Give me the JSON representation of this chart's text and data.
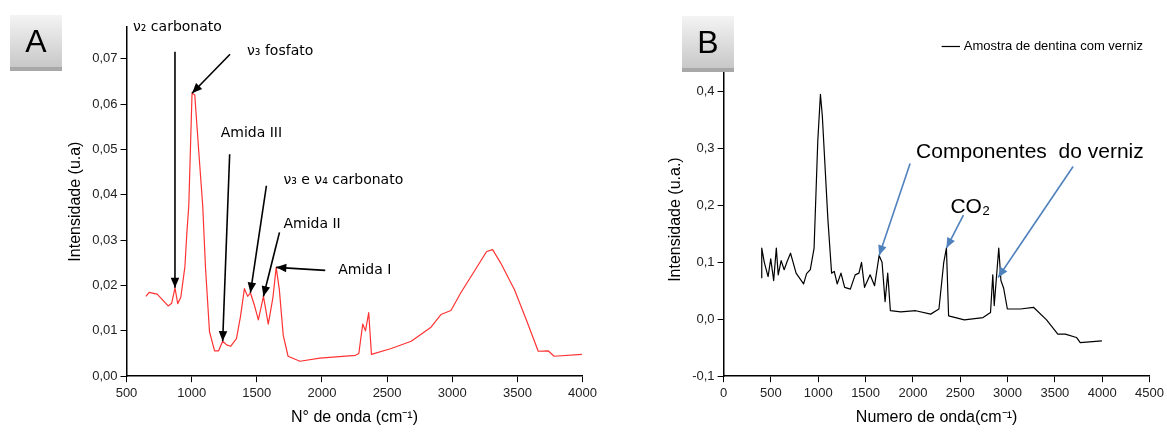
{
  "chart_data": [
    {
      "type": "line",
      "title": "A",
      "xlabel": "N° de onda (cm⁻¹)",
      "ylabel": "Intensidade (u.a)",
      "xlim": [
        500,
        4000
      ],
      "xticks": [
        500,
        1000,
        1500,
        2000,
        2500,
        3000,
        3500,
        4000
      ],
      "ylim": [
        0,
        0.077
      ],
      "yticks": [
        {
          "value": 0,
          "label": "0,00"
        },
        {
          "value": 0.01,
          "label": "0,01"
        },
        {
          "value": 0.02,
          "label": "0,02"
        },
        {
          "value": 0.03,
          "label": "0,03"
        },
        {
          "value": 0.04,
          "label": "0,04"
        },
        {
          "value": 0.05,
          "label": "0,05"
        },
        {
          "value": 0.06,
          "label": "0,06"
        },
        {
          "value": 0.07,
          "label": "0,07"
        }
      ],
      "grid": false,
      "legend": false,
      "marker": "none",
      "series": [
        {
          "color": "#ff3333",
          "x": [
            649,
            674,
            735,
            820,
            847,
            872,
            893,
            917,
            948,
            963,
            978,
            1003,
            1024,
            1055,
            1085,
            1106,
            1137,
            1176,
            1207,
            1238,
            1268,
            1299,
            1344,
            1375,
            1405,
            1430,
            1451,
            1481,
            1512,
            1551,
            1588,
            1624,
            1649,
            1673,
            1703,
            1740,
            1831,
            1984,
            2258,
            2283,
            2313,
            2334,
            2359,
            2380,
            2532,
            2685,
            2837,
            2913,
            2990,
            3066,
            3173,
            3264,
            3310,
            3371,
            3477,
            3569,
            3660,
            3736,
            3782,
            3995
          ],
          "values": [
            0.0176,
            0.0185,
            0.0181,
            0.0155,
            0.0161,
            0.0195,
            0.016,
            0.0174,
            0.0241,
            0.0315,
            0.0376,
            0.0624,
            0.062,
            0.0494,
            0.0376,
            0.0241,
            0.0098,
            0.0056,
            0.0056,
            0.0077,
            0.0069,
            0.0066,
            0.0083,
            0.0132,
            0.0193,
            0.0176,
            0.0184,
            0.0157,
            0.0124,
            0.0176,
            0.0115,
            0.0174,
            0.024,
            0.0191,
            0.009,
            0.0044,
            0.0033,
            0.004,
            0.0046,
            0.005,
            0.0115,
            0.01,
            0.014,
            0.0048,
            0.0061,
            0.0077,
            0.0108,
            0.0136,
            0.0145,
            0.0184,
            0.0233,
            0.0275,
            0.0279,
            0.025,
            0.0191,
            0.0124,
            0.0055,
            0.0056,
            0.0044,
            0.0048
          ]
        }
      ],
      "annotations": [
        {
          "text": "ν₂ carbonato",
          "x": 872,
          "y": 0.0195
        },
        {
          "text": "ν₃ fosfato",
          "x": 1003,
          "y": 0.0624
        },
        {
          "text": "Amida III",
          "x": 1238,
          "y": 0.0077
        },
        {
          "text": "ν₃ e ν₄ carbonato",
          "x": 1451,
          "y": 0.0184
        },
        {
          "text": "Amida II",
          "x": 1551,
          "y": 0.0176
        },
        {
          "text": "Amida I",
          "x": 1649,
          "y": 0.024
        }
      ]
    },
    {
      "type": "line",
      "title": "B",
      "xlabel": "Numero de onda(cm⁻¹)",
      "ylabel": "Intensidade (u.a.)",
      "xlim": [
        0,
        4500
      ],
      "xticks": [
        0,
        500,
        1000,
        1500,
        2000,
        2500,
        3000,
        3500,
        4000,
        4500
      ],
      "ylim": [
        -0.1,
        0.45
      ],
      "yticks": [
        {
          "value": -0.1,
          "label": "-0,1"
        },
        {
          "value": 0,
          "label": "0,0"
        },
        {
          "value": 0.1,
          "label": "0,1"
        },
        {
          "value": 0.2,
          "label": "0,2"
        },
        {
          "value": 0.3,
          "label": "0,3"
        },
        {
          "value": 0.4,
          "label": "0,4"
        }
      ],
      "grid": false,
      "legend": "top right",
      "marker": "none",
      "series": [
        {
          "name": "Amostra de dentina com verniz",
          "color": "#000000",
          "x": [
            403,
            403,
            430,
            470,
            498,
            529,
            557,
            577,
            608,
            640,
            668,
            707,
            766,
            845,
            877,
            916,
            956,
            995,
            1023,
            1043,
            1102,
            1141,
            1169,
            1200,
            1240,
            1279,
            1339,
            1390,
            1430,
            1457,
            1489,
            1548,
            1595,
            1643,
            1674,
            1706,
            1734,
            1762,
            1872,
            2030,
            2188,
            2275,
            2326,
            2354,
            2377,
            2543,
            2741,
            2820,
            2844,
            2859,
            2907,
            2930,
            2958,
            2998,
            3136,
            3274,
            3412,
            3531,
            3610,
            3728,
            3768,
            3997
          ],
          "values": [
            0.072,
            0.125,
            0.1,
            0.075,
            0.106,
            0.068,
            0.125,
            0.078,
            0.103,
            0.087,
            0.1,
            0.116,
            0.081,
            0.062,
            0.08,
            0.087,
            0.125,
            0.313,
            0.395,
            0.357,
            0.175,
            0.081,
            0.084,
            0.062,
            0.081,
            0.056,
            0.053,
            0.078,
            0.081,
            0.1,
            0.056,
            0.078,
            0.059,
            0.112,
            0.1,
            0.031,
            0.081,
            0.015,
            0.013,
            0.015,
            0.009,
            0.018,
            0.1,
            0.125,
            0.006,
            -0.001,
            0.003,
            0.012,
            0.078,
            0.024,
            0.125,
            0.068,
            0.055,
            0.018,
            0.018,
            0.021,
            -0.001,
            -0.026,
            -0.026,
            -0.032,
            -0.041,
            -0.038
          ]
        }
      ],
      "annotations": [
        {
          "text": "Componentes  do verniz",
          "x": 1643,
          "y": 0.112
        },
        {
          "text": "CO₂",
          "x": 2354,
          "y": 0.125
        }
      ]
    }
  ]
}
